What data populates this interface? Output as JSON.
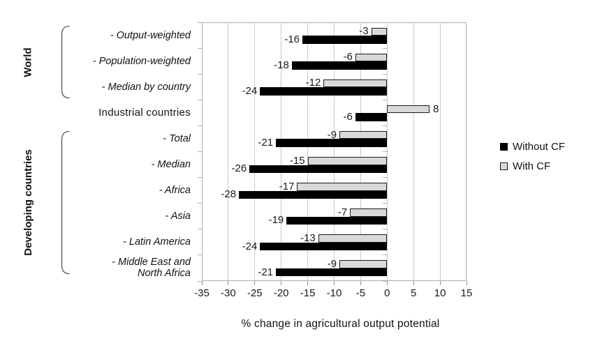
{
  "chart_data": {
    "type": "bar",
    "orientation": "horizontal",
    "xlabel": "% change in agricultural output potential",
    "xlim": [
      -35,
      15
    ],
    "xticks": [
      -35,
      -30,
      -25,
      -20,
      -15,
      -10,
      -5,
      0,
      5,
      10,
      15
    ],
    "grid": true,
    "categories": [
      {
        "label": "- Output-weighted",
        "italic": true
      },
      {
        "label": "- Population-weighted",
        "italic": true
      },
      {
        "label": "- Median by country",
        "italic": true
      },
      {
        "label": "Industrial countries",
        "italic": false
      },
      {
        "label": "- Total",
        "italic": true
      },
      {
        "label": "- Median",
        "italic": true
      },
      {
        "label": "- Africa",
        "italic": true
      },
      {
        "label": "- Asia",
        "italic": true
      },
      {
        "label": "- Latin America",
        "italic": true
      },
      {
        "label": "- Middle East and\nNorth Africa",
        "italic": true
      }
    ],
    "series": [
      {
        "name": "Without CF",
        "color": "#000000",
        "values": [
          -16,
          -18,
          -24,
          -6,
          -21,
          -26,
          -28,
          -19,
          -24,
          -21
        ]
      },
      {
        "name": "With CF",
        "color": "#d9d9d9",
        "border_color": "#1a1a1a",
        "values": [
          -3,
          -6,
          -12,
          8,
          -9,
          -15,
          -17,
          -7,
          -13,
          -9
        ]
      }
    ],
    "groups": [
      {
        "label": "World",
        "from": 0,
        "to": 2
      },
      {
        "label": "Developing countries",
        "from": 4,
        "to": 9
      }
    ],
    "legend": {
      "position": "right",
      "entries": [
        "Without CF",
        "With CF"
      ]
    }
  }
}
